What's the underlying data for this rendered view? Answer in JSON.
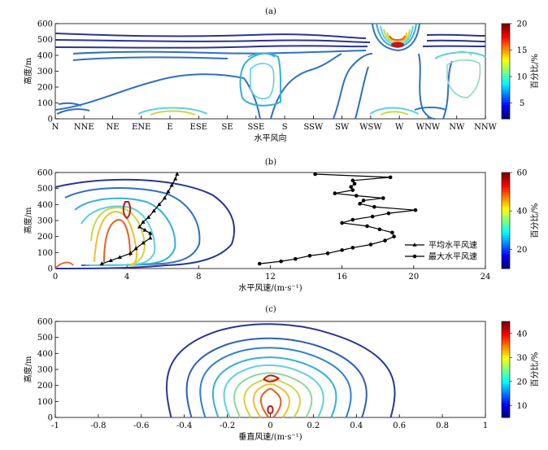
{
  "chart_data": [
    {
      "type": "contour",
      "panel_label": "(a)",
      "xlabel": "水平风向",
      "ylabel": "高度/m",
      "x_ticks": [
        "N",
        "NNE",
        "NE",
        "ENE",
        "E",
        "ESE",
        "SE",
        "SSE",
        "S",
        "SSW",
        "SW",
        "WSW",
        "W",
        "WNW",
        "NW",
        "NNW"
      ],
      "ylim": [
        0,
        600
      ],
      "y_ticks": [
        0,
        100,
        200,
        300,
        400,
        500,
        600
      ],
      "colorbar": {
        "label": "百分比/%",
        "range": [
          2,
          20
        ],
        "ticks": [
          5,
          10,
          15,
          20
        ]
      }
    },
    {
      "type": "contour",
      "panel_label": "(b)",
      "xlabel": "水平风速/(m·s⁻¹)",
      "ylabel": "高度/m",
      "xlim": [
        0,
        24
      ],
      "x_ticks": [
        0,
        4,
        8,
        12,
        16,
        20,
        24
      ],
      "ylim": [
        0,
        600
      ],
      "y_ticks": [
        0,
        100,
        200,
        300,
        400,
        500,
        600
      ],
      "colorbar": {
        "label": "百分比/%",
        "range": [
          10,
          60
        ],
        "ticks": [
          20,
          40,
          60
        ]
      },
      "legend": [
        "平均水平风速",
        "最大水平风速"
      ],
      "legend_position": "bottom-right",
      "series": [
        {
          "name": "平均水平风速",
          "marker": "triangle",
          "points": [
            [
              2.6,
              30
            ],
            [
              3.1,
              50
            ],
            [
              3.6,
              70
            ],
            [
              4.2,
              95
            ],
            [
              4.5,
              125
            ],
            [
              4.9,
              160
            ],
            [
              5.3,
              190
            ],
            [
              5.3,
              220
            ],
            [
              5.0,
              240
            ],
            [
              4.7,
              260
            ],
            [
              4.9,
              290
            ],
            [
              5.2,
              320
            ],
            [
              5.5,
              360
            ],
            [
              5.8,
              400
            ],
            [
              6.1,
              440
            ],
            [
              6.3,
              480
            ],
            [
              6.5,
              520
            ],
            [
              6.7,
              560
            ],
            [
              6.8,
              590
            ]
          ]
        },
        {
          "name": "最大水平风速",
          "marker": "circle",
          "points": [
            [
              11.4,
              30
            ],
            [
              12.6,
              45
            ],
            [
              13.4,
              60
            ],
            [
              14.2,
              80
            ],
            [
              15.2,
              95
            ],
            [
              16.0,
              115
            ],
            [
              16.6,
              130
            ],
            [
              17.6,
              150
            ],
            [
              18.4,
              175
            ],
            [
              18.9,
              200
            ],
            [
              18.8,
              225
            ],
            [
              18.1,
              245
            ],
            [
              17.4,
              265
            ],
            [
              16.0,
              285
            ],
            [
              16.6,
              305
            ],
            [
              17.7,
              325
            ],
            [
              18.6,
              345
            ],
            [
              20.1,
              365
            ],
            [
              17.8,
              385
            ],
            [
              17.0,
              405
            ],
            [
              17.2,
              425
            ],
            [
              18.3,
              440
            ],
            [
              16.8,
              455
            ],
            [
              15.6,
              470
            ],
            [
              16.6,
              490
            ],
            [
              16.5,
              510
            ],
            [
              16.7,
              530
            ],
            [
              16.6,
              550
            ],
            [
              18.7,
              570
            ],
            [
              14.5,
              590
            ]
          ]
        }
      ]
    },
    {
      "type": "contour",
      "panel_label": "(c)",
      "xlabel": "垂直风速/(m·s⁻¹)",
      "ylabel": "高度/m",
      "xlim": [
        -1,
        1
      ],
      "x_ticks": [
        -1,
        -0.8,
        -0.6,
        -0.4,
        -0.2,
        0,
        0.2,
        0.4,
        0.6,
        0.8,
        1
      ],
      "ylim": [
        0,
        600
      ],
      "y_ticks": [
        0,
        100,
        200,
        300,
        400,
        500,
        600
      ],
      "colorbar": {
        "label": "百分比/%",
        "range": [
          5,
          45
        ],
        "ticks": [
          10,
          20,
          30,
          40
        ]
      }
    }
  ]
}
